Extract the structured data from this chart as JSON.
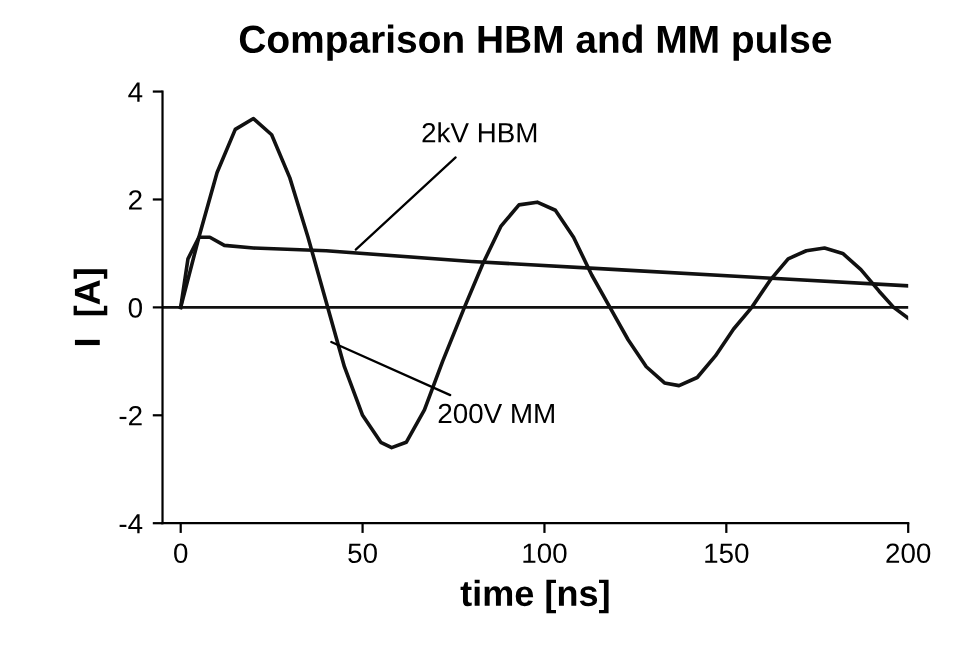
{
  "chart_data": {
    "type": "line",
    "title": "Comparison HBM and MM pulse",
    "xlabel": "time [ns]",
    "ylabel": "I  [A]",
    "series": [
      {
        "color": "#111111",
        "x": [
          0,
          5,
          10,
          15,
          20,
          25,
          30,
          35,
          40,
          45,
          50,
          55,
          58,
          62,
          67,
          72,
          78,
          83,
          88,
          93,
          98,
          103,
          108,
          113,
          118,
          123,
          128,
          133,
          137,
          142,
          147,
          152,
          157,
          162,
          167,
          172,
          177,
          182,
          187,
          192,
          196,
          200
        ],
        "values": [
          0,
          1.3,
          2.5,
          3.3,
          3.5,
          3.2,
          2.4,
          1.3,
          0.1,
          -1.1,
          -2.0,
          -2.5,
          -2.6,
          -2.5,
          -1.9,
          -1.0,
          0,
          0.8,
          1.5,
          1.9,
          1.95,
          1.8,
          1.3,
          0.6,
          0,
          -0.6,
          -1.1,
          -1.4,
          -1.45,
          -1.3,
          -0.9,
          -0.4,
          0,
          0.5,
          0.9,
          1.05,
          1.1,
          1.0,
          0.7,
          0.3,
          0,
          -0.2
        ]
      },
      {
        "color": "#111111",
        "x": [
          0,
          2,
          5,
          8,
          12,
          20,
          40,
          80,
          120,
          160,
          200
        ],
        "values": [
          0,
          0.9,
          1.3,
          1.3,
          1.15,
          1.1,
          1.05,
          0.85,
          0.7,
          0.55,
          0.4
        ]
      }
    ],
    "annotations": [
      {
        "text": "2kV HBM",
        "x": 47,
        "y": 1.0
      },
      {
        "text": "200V MM",
        "x": 40,
        "y": -0.6
      }
    ],
    "ref_lines": [
      {
        "axis": "y",
        "value": 0,
        "color": "#111111"
      }
    ],
    "xlim": [
      -5,
      200
    ],
    "ylim": [
      -4,
      4
    ],
    "xticks": [
      0,
      50,
      100,
      150,
      200
    ],
    "yticks": [
      -4,
      -2,
      0,
      2,
      4
    ],
    "grid": false,
    "marker": "none",
    "line_style": "solid"
  }
}
